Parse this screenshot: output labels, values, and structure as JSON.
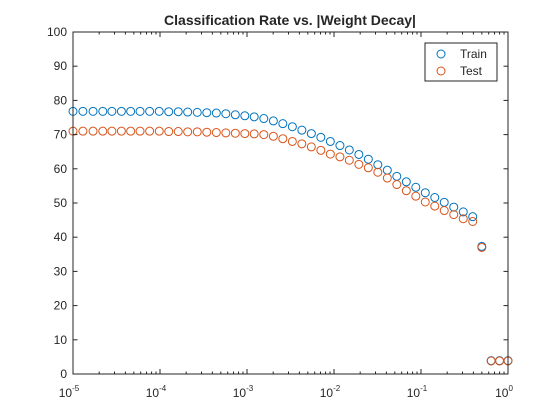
{
  "chart_data": {
    "type": "scatter",
    "title": "Classification Rate vs. |Weight Decay|",
    "xlabel": "",
    "ylabel": "",
    "xscale": "log",
    "xlim": [
      1e-05,
      1
    ],
    "ylim": [
      0,
      100
    ],
    "grid": false,
    "legend_position": "top-right",
    "xticks": [
      {
        "base": "10",
        "exp": "-5"
      },
      {
        "base": "10",
        "exp": "-4"
      },
      {
        "base": "10",
        "exp": "-3"
      },
      {
        "base": "10",
        "exp": "-2"
      },
      {
        "base": "10",
        "exp": "-1"
      },
      {
        "base": "10",
        "exp": "0"
      }
    ],
    "yticks": [
      "0",
      "10",
      "20",
      "30",
      "40",
      "50",
      "60",
      "70",
      "80",
      "90",
      "100"
    ],
    "x": [
      1e-05,
      1.3e-05,
      1.7e-05,
      2.2e-05,
      2.8e-05,
      3.6e-05,
      4.6e-05,
      5.9e-05,
      7.6e-05,
      9.8e-05,
      0.000126,
      0.000162,
      0.000208,
      0.000268,
      0.000345,
      0.000444,
      0.000571,
      0.000734,
      0.000944,
      0.00121,
      0.00156,
      0.00201,
      0.00258,
      0.00332,
      0.00427,
      0.00549,
      0.00706,
      0.00908,
      0.0117,
      0.015,
      0.0193,
      0.0248,
      0.0319,
      0.041,
      0.0527,
      0.0678,
      0.0872,
      0.112,
      0.144,
      0.185,
      0.238,
      0.306,
      0.393,
      0.5,
      0.64,
      0.8,
      1.0
    ],
    "series": [
      {
        "name": "Train",
        "color": "#0072BD",
        "values": [
          76.8,
          76.8,
          76.8,
          76.8,
          76.8,
          76.8,
          76.8,
          76.8,
          76.8,
          76.8,
          76.7,
          76.7,
          76.6,
          76.5,
          76.4,
          76.3,
          76.1,
          75.8,
          75.5,
          75.2,
          74.7,
          74.0,
          73.2,
          72.3,
          71.3,
          70.3,
          69.2,
          68.0,
          66.8,
          65.5,
          64.2,
          62.8,
          61.2,
          59.6,
          57.8,
          56.2,
          54.6,
          53.0,
          51.6,
          50.2,
          48.8,
          47.4,
          46.0,
          37.3,
          3.9,
          3.9,
          3.9
        ]
      },
      {
        "name": "Test",
        "color": "#D95319",
        "values": [
          71.0,
          71.0,
          71.0,
          71.0,
          71.0,
          71.0,
          71.0,
          71.0,
          71.0,
          71.0,
          70.9,
          70.9,
          70.8,
          70.8,
          70.7,
          70.6,
          70.5,
          70.4,
          70.3,
          70.2,
          70.0,
          69.5,
          68.8,
          68.0,
          67.3,
          66.4,
          65.4,
          64.3,
          63.5,
          62.5,
          61.3,
          60.3,
          59.0,
          57.3,
          55.4,
          53.6,
          52.0,
          50.3,
          49.1,
          47.8,
          46.6,
          45.4,
          44.6,
          37.0,
          3.8,
          3.8,
          3.8
        ]
      }
    ]
  }
}
